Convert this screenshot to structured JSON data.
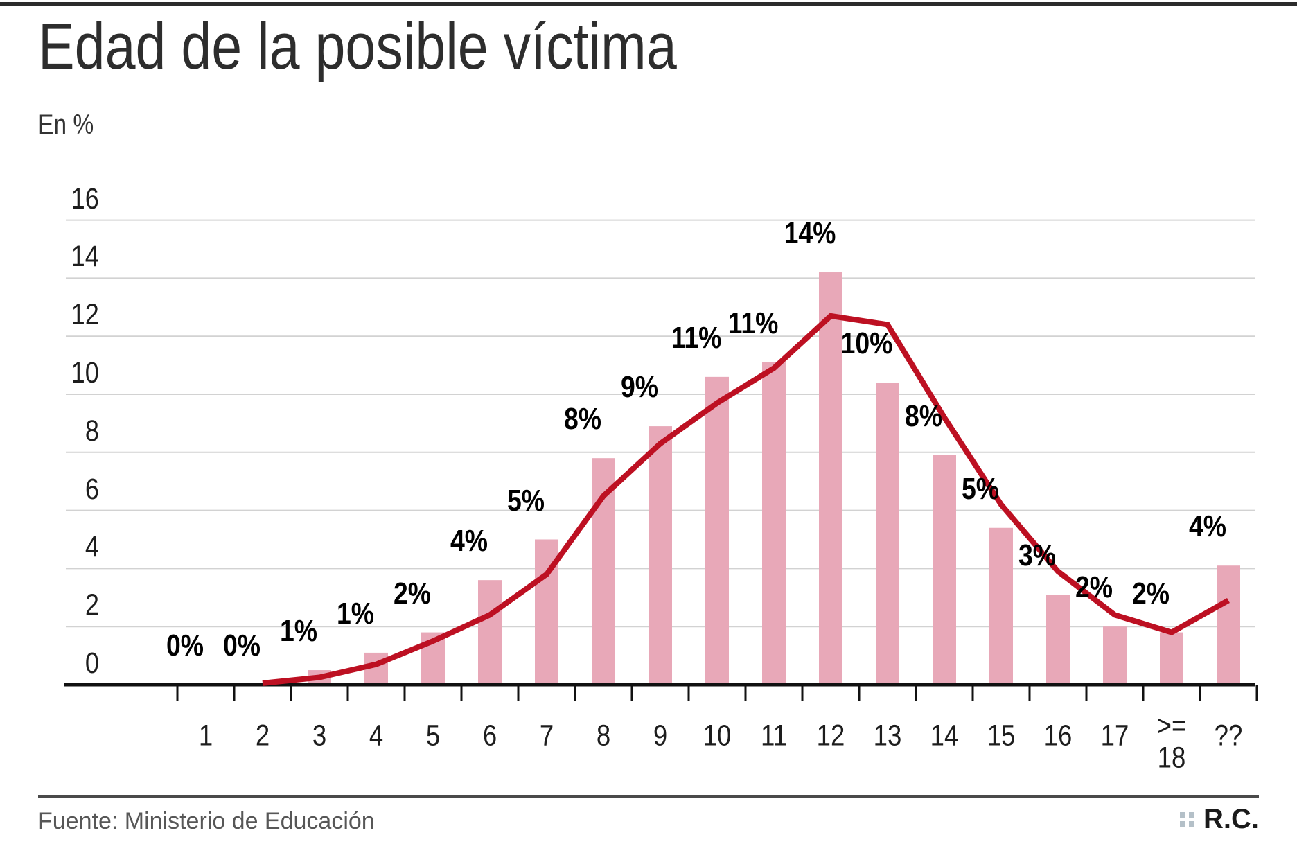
{
  "header": {
    "title": "Edad de la posible víctima",
    "unit_label": "En %"
  },
  "footer": {
    "source": "Fuente: Ministerio de Educación",
    "logo_text": "R.C.",
    "logo_squares_icon": "four-squares-grid"
  },
  "colors": {
    "bar": "#e8a8b8",
    "line": "#bd1022",
    "grid": "#d2d2d2",
    "axis": "#111111",
    "top_border": "#2b2b2b",
    "footer_rule": "#4a4a4a",
    "logo_squares": "#b4c0c8",
    "title_text": "#2d2d2d",
    "data_label_text": "#000000"
  },
  "chart_data": {
    "type": "bar",
    "title": "Edad de la posible víctima",
    "xlabel": "",
    "ylabel": "En %",
    "categories": [
      "1",
      "2",
      "3",
      "4",
      "5",
      "6",
      "7",
      "8",
      "9",
      "10",
      "11",
      "12",
      "13",
      "14",
      "15",
      "16",
      "17",
      ">= 18",
      "??"
    ],
    "series": [
      {
        "name": "bars",
        "type": "bar",
        "values": [
          0,
          0,
          0.5,
          1.1,
          1.8,
          3.6,
          5.0,
          7.8,
          8.9,
          10.6,
          11.1,
          14.2,
          10.4,
          7.9,
          5.4,
          3.1,
          2.0,
          1.8,
          4.1
        ],
        "labels": [
          "0%",
          "0%",
          "1%",
          "1%",
          "2%",
          "4%",
          "5%",
          "8%",
          "9%",
          "11%",
          "11%",
          "14%",
          "10%",
          "8%",
          "5%",
          "3%",
          "2%",
          "2%",
          "4%"
        ]
      },
      {
        "name": "line",
        "type": "line",
        "values": [
          null,
          0.05,
          0.25,
          0.7,
          1.5,
          2.4,
          3.8,
          6.5,
          8.3,
          9.7,
          10.9,
          12.7,
          12.4,
          9.2,
          6.2,
          3.9,
          2.4,
          1.8,
          2.9
        ]
      }
    ],
    "yticks": [
      0,
      2,
      4,
      6,
      8,
      10,
      12,
      14,
      16
    ],
    "ylim": [
      0,
      16.5
    ],
    "grid": true,
    "legend": false
  }
}
